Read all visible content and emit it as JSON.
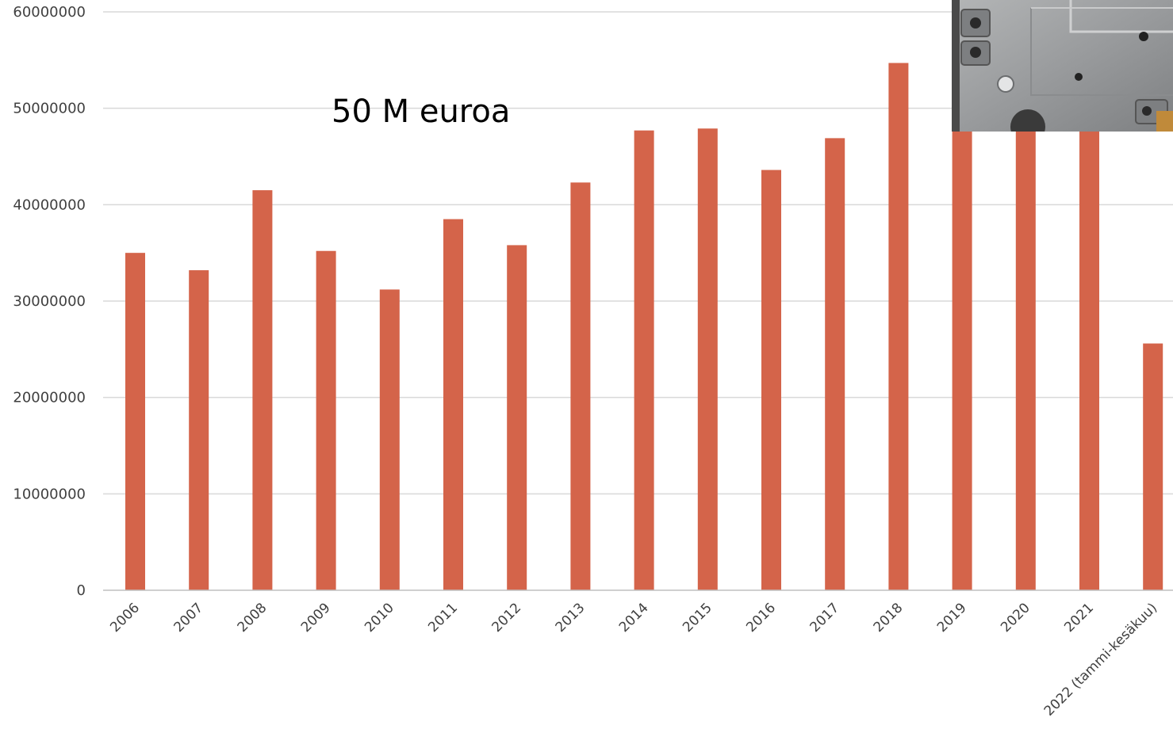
{
  "chart_data": {
    "type": "bar",
    "title": "",
    "xlabel": "",
    "ylabel": "",
    "categories": [
      "2006",
      "2007",
      "2008",
      "2009",
      "2010",
      "2011",
      "2012",
      "2013",
      "2014",
      "2015",
      "2016",
      "2017",
      "2018",
      "2019",
      "2020",
      "2021",
      "2022 (tammi-kesäkuu)"
    ],
    "values": [
      35000000,
      33200000,
      41500000,
      35200000,
      31200000,
      38500000,
      35800000,
      42300000,
      47700000,
      47900000,
      43600000,
      46900000,
      54700000,
      49600000,
      48600000,
      49200000,
      25600000
    ],
    "ylim": [
      0,
      60000000
    ],
    "yticks": [
      0,
      10000000,
      20000000,
      30000000,
      40000000,
      50000000,
      60000000
    ],
    "grid": true,
    "legend": "none",
    "bar_color": "#D4644A",
    "gridline_color": "#D9D9D9",
    "annotations": [
      {
        "text": "50 M euroa"
      }
    ]
  },
  "photo": {
    "icon": "metal-plate-photo",
    "base_color": "#9C9EA0"
  }
}
